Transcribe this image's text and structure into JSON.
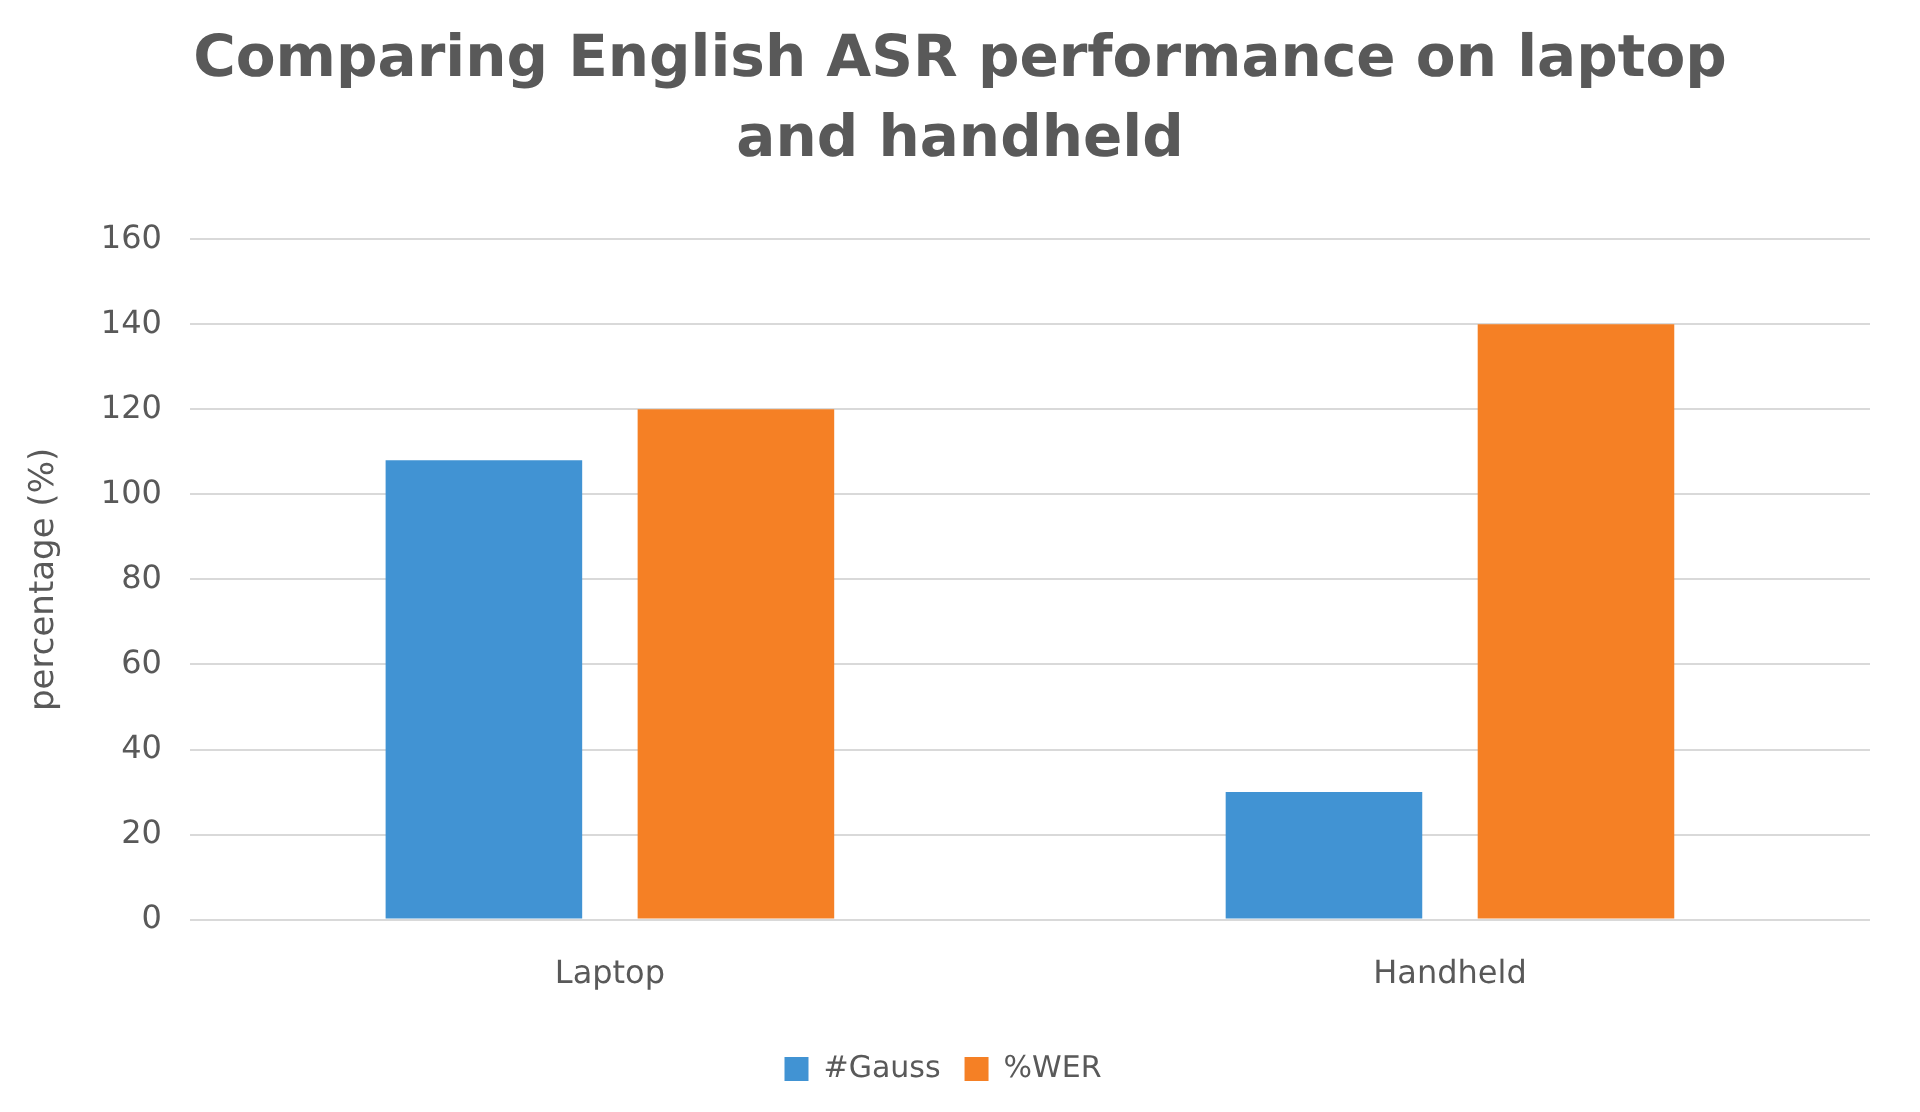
{
  "chart_data": {
    "type": "bar",
    "title": "Comparing English ASR performance on laptop and handheld",
    "ylabel": "percentage (%)",
    "categories": [
      "Laptop",
      "Handheld"
    ],
    "series": [
      {
        "name": "#Gauss",
        "color": "#4193d3",
        "values": [
          108,
          30
        ]
      },
      {
        "name": "%WER",
        "color": "#f58025",
        "values": [
          120,
          140
        ]
      }
    ],
    "ylim": [
      0,
      160
    ],
    "yticks": [
      0,
      20,
      40,
      60,
      80,
      100,
      120,
      140,
      160
    ],
    "grid": "y",
    "legend": "bottom"
  }
}
